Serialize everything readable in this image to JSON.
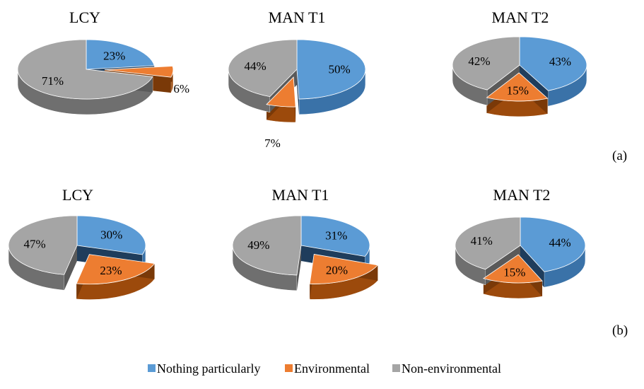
{
  "panel_labels": [
    "(a)",
    "(b)"
  ],
  "legend": [
    "Nothing particularly",
    "Environmental",
    "Non-environmental"
  ],
  "colors": {
    "nothing_top": "#5b9bd5",
    "nothing_side": "#3a72a8",
    "nothing_wall": "#1f3d5c",
    "env_top": "#ed7d31",
    "env_side": "#9c4a0c",
    "env_wall": "#7a3908",
    "non_top": "#a5a5a5",
    "non_side": "#6f6f6f",
    "non_wall": "#5a5a5a"
  },
  "chart_data": [
    {
      "type": "pie",
      "title": "LCY",
      "panel": "(a)",
      "categories": [
        "Nothing particularly",
        "Environmental",
        "Non-environmental"
      ],
      "values": [
        23,
        6,
        71
      ],
      "labels": [
        "23%",
        "6%",
        "71%"
      ],
      "exploded": "Environmental"
    },
    {
      "type": "pie",
      "title": "MAN T1",
      "panel": "(a)",
      "categories": [
        "Nothing particularly",
        "Environmental",
        "Non-environmental"
      ],
      "values": [
        50,
        7,
        44
      ],
      "labels": [
        "50%",
        "7%",
        "44%"
      ],
      "exploded": "Environmental"
    },
    {
      "type": "pie",
      "title": "MAN T2",
      "panel": "(a)",
      "categories": [
        "Nothing particularly",
        "Environmental",
        "Non-environmental"
      ],
      "values": [
        43,
        15,
        42
      ],
      "labels": [
        "43%",
        "15%",
        "42%"
      ],
      "exploded": "Environmental"
    },
    {
      "type": "pie",
      "title": "LCY",
      "panel": "(b)",
      "categories": [
        "Nothing particularly",
        "Environmental",
        "Non-environmental"
      ],
      "values": [
        30,
        23,
        47
      ],
      "labels": [
        "30%",
        "23%",
        "47%"
      ],
      "exploded": "Environmental"
    },
    {
      "type": "pie",
      "title": "MAN T1",
      "panel": "(b)",
      "categories": [
        "Nothing particularly",
        "Environmental",
        "Non-environmental"
      ],
      "values": [
        31,
        20,
        49
      ],
      "labels": [
        "31%",
        "20%",
        "49%"
      ],
      "exploded": "Environmental"
    },
    {
      "type": "pie",
      "title": "MAN T2",
      "panel": "(b)",
      "categories": [
        "Nothing particularly",
        "Environmental",
        "Non-environmental"
      ],
      "values": [
        44,
        15,
        41
      ],
      "labels": [
        "44%",
        "15%",
        "41%"
      ],
      "exploded": "Environmental"
    }
  ]
}
